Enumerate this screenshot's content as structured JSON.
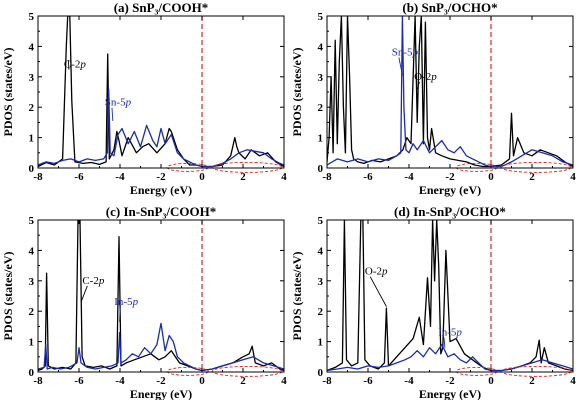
{
  "chart_data": [
    {
      "type": "line",
      "title": "(a) SnP₃/COOH*",
      "xlabel": "Energy (eV)",
      "ylabel": "PDOS (states/eV)",
      "xlim": [
        -8,
        4
      ],
      "ylim": [
        0,
        5
      ],
      "xticks": [
        "-8",
        "-6",
        "-4",
        "-2",
        "0",
        "2",
        "4"
      ],
      "yticks": [
        "0",
        "1",
        "2",
        "3",
        "4",
        "5"
      ],
      "fermi_level": 0,
      "annotations": [
        {
          "label": "C-2",
          "italic": "p",
          "color": "#000000"
        },
        {
          "label": "Sn-5",
          "italic": "p",
          "color": "#1a2bb0"
        }
      ],
      "series": [
        {
          "color": "#000000",
          "x": [
            -8.0,
            -7.6,
            -7.2,
            -6.8,
            -6.62,
            -6.55,
            -6.45,
            -6.35,
            -6.2,
            -5.8,
            -5.4,
            -5.0,
            -4.68,
            -4.6,
            -4.52,
            -4.3,
            -4.15,
            -4.05,
            -3.9,
            -3.6,
            -3.2,
            -2.9,
            -2.6,
            -2.2,
            -1.8,
            -1.6,
            -1.5,
            -1.2,
            -0.9,
            -0.6,
            -0.3,
            0.0,
            0.5,
            1.0,
            1.4,
            1.6,
            1.7,
            1.8,
            2.1,
            2.4,
            2.8,
            3.2,
            3.6,
            4.0
          ],
          "y": [
            0.05,
            0.18,
            0.1,
            0.3,
            4.0,
            5.0,
            5.0,
            2.2,
            0.2,
            0.15,
            0.18,
            0.12,
            0.2,
            3.75,
            0.3,
            0.6,
            1.2,
            0.9,
            0.4,
            1.0,
            0.5,
            0.7,
            0.8,
            0.5,
            0.8,
            1.3,
            1.2,
            0.6,
            0.3,
            0.1,
            0.1,
            0.05,
            0.05,
            0.1,
            0.4,
            1.0,
            0.7,
            0.5,
            0.3,
            0.6,
            0.4,
            0.5,
            0.2,
            0.05
          ]
        },
        {
          "color": "#1a2bb0",
          "x": [
            -8.0,
            -7.6,
            -7.2,
            -6.8,
            -6.4,
            -6.0,
            -5.6,
            -5.2,
            -4.8,
            -4.62,
            -4.55,
            -4.48,
            -4.3,
            -4.1,
            -3.9,
            -3.6,
            -3.3,
            -3.0,
            -2.7,
            -2.4,
            -2.2,
            -2.0,
            -1.8,
            -1.5,
            -1.2,
            -0.9,
            -0.6,
            -0.3,
            0.0,
            0.5,
            1.0,
            1.4,
            1.8,
            2.2,
            2.6,
            3.0,
            3.4,
            3.8,
            4.0
          ],
          "y": [
            0.1,
            0.2,
            0.15,
            0.25,
            0.3,
            0.2,
            0.3,
            0.25,
            0.3,
            0.5,
            2.6,
            0.5,
            0.4,
            1.1,
            1.3,
            0.8,
            1.2,
            0.7,
            1.4,
            0.9,
            0.7,
            1.3,
            0.8,
            1.1,
            0.5,
            0.3,
            0.2,
            0.1,
            0.05,
            0.05,
            0.15,
            0.3,
            0.5,
            0.6,
            0.55,
            0.5,
            0.3,
            0.15,
            0.1
          ]
        }
      ]
    },
    {
      "type": "line",
      "title": "(b) SnP₃/OCHO*",
      "xlabel": "Energy (eV)",
      "ylabel": "PDOS (states/eV)",
      "xlim": [
        -8,
        4
      ],
      "ylim": [
        0,
        5
      ],
      "xticks": [
        "-8",
        "-6",
        "-4",
        "-2",
        "0",
        "2",
        "4"
      ],
      "yticks": [
        "0",
        "1",
        "2",
        "3",
        "4",
        "5"
      ],
      "fermi_level": 0,
      "annotations": [
        {
          "label": "Sn-5",
          "italic": "p",
          "color": "#1a2bb0"
        },
        {
          "label": "O-2",
          "italic": "p",
          "color": "#000000"
        }
      ],
      "series": [
        {
          "color": "#000000",
          "x": [
            -8.0,
            -7.9,
            -7.8,
            -7.7,
            -7.6,
            -7.5,
            -7.4,
            -7.3,
            -7.2,
            -7.1,
            -7.0,
            -6.9,
            -6.8,
            -6.7,
            -6.5,
            -6.2,
            -5.8,
            -5.4,
            -5.0,
            -4.6,
            -4.3,
            -4.1,
            -3.9,
            -3.7,
            -3.6,
            -3.5,
            -3.4,
            -3.3,
            -3.2,
            -3.1,
            -3.0,
            -2.9,
            -2.7,
            -2.4,
            -2.0,
            -1.6,
            -1.2,
            -0.8,
            -0.4,
            0.0,
            0.5,
            0.9,
            1.0,
            1.1,
            1.3,
            1.6,
            2.0,
            2.4,
            2.8,
            3.2,
            3.6,
            4.0
          ],
          "y": [
            0.2,
            1.0,
            3.0,
            0.5,
            4.2,
            0.8,
            3.5,
            5.0,
            2.0,
            0.5,
            5.0,
            3.0,
            0.6,
            0.3,
            0.2,
            0.15,
            0.25,
            0.2,
            0.3,
            0.4,
            0.6,
            1.0,
            0.8,
            5.0,
            1.5,
            4.0,
            5.0,
            0.8,
            4.8,
            1.0,
            0.6,
            1.3,
            0.5,
            0.4,
            0.3,
            0.25,
            0.2,
            0.1,
            0.05,
            0.05,
            0.1,
            0.3,
            1.8,
            0.4,
            1.0,
            0.5,
            0.4,
            0.6,
            0.5,
            0.4,
            0.2,
            0.05
          ]
        },
        {
          "color": "#1a2bb0",
          "x": [
            -8.0,
            -7.5,
            -7.0,
            -6.5,
            -6.0,
            -5.5,
            -5.0,
            -4.6,
            -4.4,
            -4.32,
            -4.25,
            -4.15,
            -4.0,
            -3.8,
            -3.6,
            -3.3,
            -3.0,
            -2.7,
            -2.4,
            -2.1,
            -1.8,
            -1.5,
            -1.2,
            -0.9,
            -0.6,
            -0.3,
            0.0,
            0.5,
            1.0,
            1.5,
            2.0,
            2.5,
            3.0,
            3.5,
            4.0
          ],
          "y": [
            0.1,
            0.3,
            0.2,
            0.3,
            0.2,
            0.3,
            0.25,
            0.4,
            0.5,
            5.0,
            2.0,
            0.6,
            0.5,
            0.8,
            0.6,
            0.9,
            0.5,
            0.7,
            0.9,
            0.6,
            0.5,
            0.7,
            0.4,
            0.3,
            0.2,
            0.1,
            0.05,
            0.05,
            0.2,
            0.4,
            0.6,
            0.5,
            0.4,
            0.2,
            0.1
          ]
        }
      ]
    },
    {
      "type": "line",
      "title": "(c) In-SnP₃/COOH*",
      "xlabel": "Energy (eV)",
      "ylabel": "PDOS (states/eV)",
      "xlim": [
        -8,
        4
      ],
      "ylim": [
        0,
        5
      ],
      "xticks": [
        "-8",
        "-6",
        "-4",
        "-2",
        "0",
        "2",
        "4"
      ],
      "yticks": [
        "0",
        "1",
        "2",
        "3",
        "4",
        "5"
      ],
      "fermi_level": 0,
      "annotations": [
        {
          "label": "C-2",
          "italic": "p",
          "color": "#000000"
        },
        {
          "label": "In-5",
          "italic": "p",
          "color": "#1a2bb0"
        }
      ],
      "series": [
        {
          "color": "#000000",
          "x": [
            -8.0,
            -7.8,
            -7.65,
            -7.58,
            -7.5,
            -7.2,
            -6.8,
            -6.4,
            -6.15,
            -6.05,
            -5.95,
            -5.85,
            -5.7,
            -5.3,
            -4.9,
            -4.5,
            -4.15,
            -4.05,
            -3.95,
            -3.7,
            -3.3,
            -2.9,
            -2.5,
            -2.1,
            -1.8,
            -1.5,
            -1.1,
            -0.7,
            -0.3,
            0.0,
            0.5,
            1.0,
            1.5,
            2.0,
            2.3,
            2.45,
            2.6,
            3.0,
            3.4,
            3.8,
            4.0
          ],
          "y": [
            0.05,
            0.1,
            0.2,
            3.25,
            0.2,
            0.1,
            0.15,
            0.1,
            0.3,
            5.0,
            5.0,
            0.5,
            0.2,
            0.15,
            0.2,
            0.1,
            0.2,
            4.45,
            0.2,
            0.3,
            0.4,
            0.5,
            0.6,
            0.4,
            0.5,
            0.7,
            0.3,
            0.2,
            0.1,
            0.05,
            0.1,
            0.2,
            0.3,
            0.5,
            0.6,
            0.85,
            0.3,
            0.2,
            0.3,
            0.1,
            0.05
          ]
        },
        {
          "color": "#1a2bb0",
          "x": [
            -8.0,
            -7.7,
            -7.62,
            -7.55,
            -7.3,
            -6.9,
            -6.5,
            -6.1,
            -6.0,
            -5.9,
            -5.6,
            -5.2,
            -4.8,
            -4.4,
            -4.1,
            -4.02,
            -3.95,
            -3.7,
            -3.4,
            -3.1,
            -2.8,
            -2.5,
            -2.2,
            -2.0,
            -1.8,
            -1.6,
            -1.4,
            -1.2,
            -0.9,
            -0.6,
            -0.3,
            0.0,
            0.5,
            1.0,
            1.5,
            2.0,
            2.5,
            3.0,
            3.5,
            4.0
          ],
          "y": [
            0.1,
            0.15,
            0.9,
            0.1,
            0.15,
            0.1,
            0.15,
            0.3,
            0.8,
            0.3,
            0.15,
            0.1,
            0.15,
            0.2,
            0.3,
            1.3,
            0.3,
            0.4,
            0.6,
            0.5,
            0.8,
            0.6,
            0.9,
            1.6,
            0.7,
            1.2,
            1.0,
            0.5,
            0.3,
            0.2,
            0.1,
            0.05,
            0.1,
            0.2,
            0.3,
            0.4,
            0.5,
            0.3,
            0.2,
            0.1
          ]
        }
      ]
    },
    {
      "type": "line",
      "title": "(d) In-SnP₃/OCHO*",
      "xlabel": "Energy (eV)",
      "ylabel": "PDOS (states/eV)",
      "xlim": [
        -8,
        4
      ],
      "ylim": [
        0,
        5
      ],
      "xticks": [
        "-8",
        "-6",
        "-4",
        "-2",
        "0",
        "2",
        "4"
      ],
      "yticks": [
        "0",
        "1",
        "2",
        "3",
        "4",
        "5"
      ],
      "fermi_level": 0,
      "annotations": [
        {
          "label": "O-2",
          "italic": "p",
          "color": "#000000"
        },
        {
          "label": "In-5",
          "italic": "p",
          "color": "#1a2bb0"
        }
      ],
      "series": [
        {
          "color": "#000000",
          "x": [
            -8.0,
            -7.6,
            -7.25,
            -7.15,
            -7.05,
            -6.8,
            -6.5,
            -6.35,
            -6.25,
            -6.15,
            -5.9,
            -5.5,
            -5.2,
            -5.1,
            -5.0,
            -4.6,
            -4.2,
            -3.8,
            -3.5,
            -3.3,
            -3.1,
            -2.95,
            -2.85,
            -2.75,
            -2.65,
            -2.55,
            -2.45,
            -2.35,
            -2.2,
            -2.0,
            -1.7,
            -1.3,
            -0.9,
            -0.5,
            -0.2,
            0.0,
            0.5,
            1.0,
            1.5,
            1.9,
            2.2,
            2.35,
            2.45,
            2.6,
            2.8,
            3.2,
            3.6,
            4.0
          ],
          "y": [
            0.05,
            0.15,
            0.3,
            5.0,
            0.4,
            0.2,
            0.3,
            5.0,
            5.0,
            0.4,
            0.2,
            0.1,
            0.3,
            2.1,
            0.2,
            0.5,
            0.8,
            1.1,
            1.8,
            0.9,
            3.1,
            1.5,
            5.0,
            3.0,
            5.0,
            3.5,
            0.6,
            0.8,
            4.0,
            1.0,
            1.1,
            0.6,
            0.4,
            0.2,
            0.1,
            0.05,
            0.05,
            0.1,
            0.2,
            0.3,
            0.5,
            1.05,
            0.3,
            0.8,
            0.3,
            0.2,
            0.1,
            0.05
          ]
        },
        {
          "color": "#1a2bb0",
          "x": [
            -8.0,
            -7.5,
            -7.0,
            -6.5,
            -6.0,
            -5.5,
            -5.0,
            -4.6,
            -4.2,
            -3.9,
            -3.6,
            -3.3,
            -3.0,
            -2.7,
            -2.4,
            -2.1,
            -1.8,
            -1.5,
            -1.2,
            -0.9,
            -0.6,
            -0.3,
            0.0,
            0.5,
            1.0,
            1.5,
            2.0,
            2.5,
            3.0,
            3.5,
            4.0
          ],
          "y": [
            0.05,
            0.1,
            0.15,
            0.1,
            0.2,
            0.15,
            0.2,
            0.3,
            0.4,
            0.5,
            0.7,
            0.5,
            0.8,
            0.6,
            0.9,
            0.5,
            0.6,
            0.4,
            0.3,
            0.5,
            0.3,
            0.1,
            0.05,
            0.05,
            0.1,
            0.2,
            0.3,
            0.4,
            0.3,
            0.2,
            0.1
          ]
        }
      ]
    }
  ]
}
